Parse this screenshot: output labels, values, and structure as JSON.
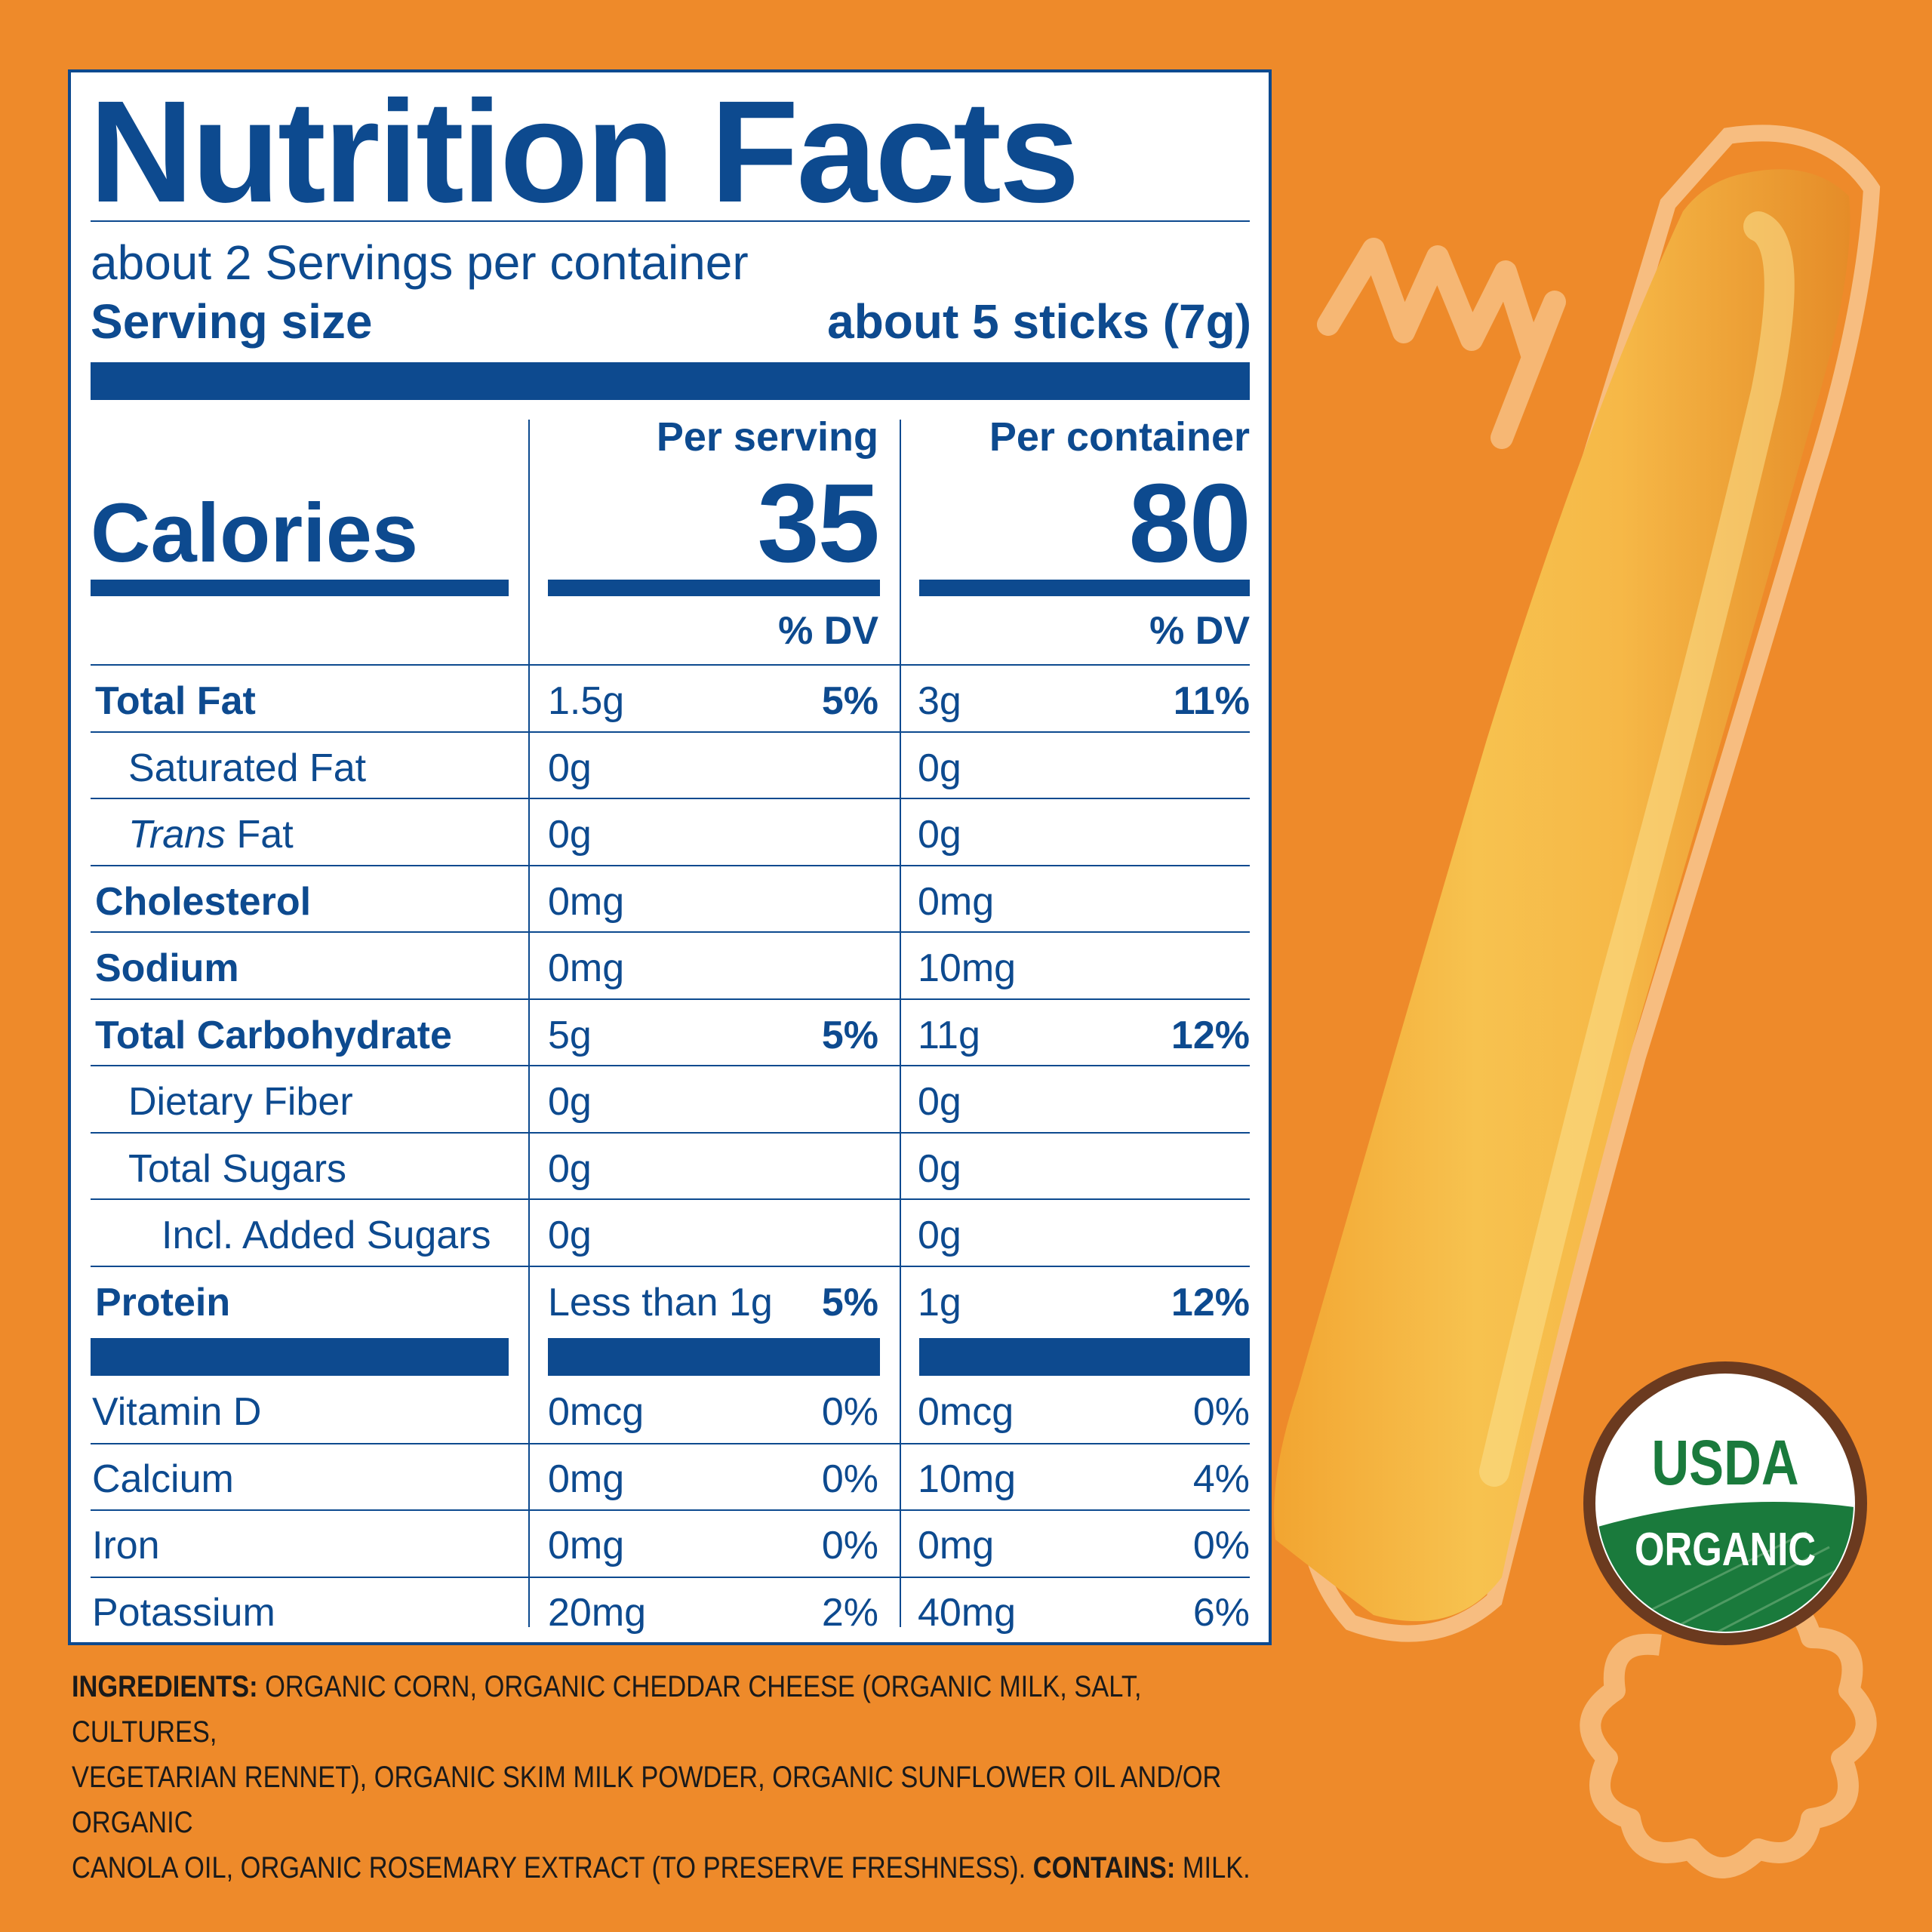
{
  "label": {
    "title": "Nutrition Facts",
    "servings_per_container": "about 2 Servings per container",
    "serving_size_label": "Serving size",
    "serving_size_value": "about 5 sticks (7g)",
    "col_serving": "Per serving",
    "col_container": "Per container",
    "calories_label": "Calories",
    "calories_serving": "35",
    "calories_container": "80",
    "dv_label": "% DV",
    "nutrients": [
      {
        "name": "Total Fat",
        "serving": "1.5g",
        "serving_dv": "5%",
        "container": "3g",
        "container_dv": "11%"
      },
      {
        "name": "Saturated Fat",
        "serving": "0g",
        "serving_dv": "",
        "container": "0g",
        "container_dv": ""
      },
      {
        "name_italic": "Trans",
        "name": " Fat",
        "serving": "0g",
        "serving_dv": "",
        "container": "0g",
        "container_dv": ""
      },
      {
        "name": "Cholesterol",
        "serving": "0mg",
        "serving_dv": "",
        "container": "0mg",
        "container_dv": ""
      },
      {
        "name": "Sodium",
        "serving": "0mg",
        "serving_dv": "",
        "container": "10mg",
        "container_dv": ""
      },
      {
        "name": "Total Carbohydrate",
        "serving": "5g",
        "serving_dv": "5%",
        "container": "11g",
        "container_dv": "12%"
      },
      {
        "name": "Dietary Fiber",
        "serving": "0g",
        "serving_dv": "",
        "container": "0g",
        "container_dv": ""
      },
      {
        "name": "Total Sugars",
        "serving": "0g",
        "serving_dv": "",
        "container": "0g",
        "container_dv": ""
      },
      {
        "name": "Incl. Added Sugars",
        "serving": "0g",
        "serving_dv": "",
        "container": "0g",
        "container_dv": ""
      },
      {
        "name": "Protein",
        "serving": "Less than 1g",
        "serving_dv": "5%",
        "container": "1g",
        "container_dv": "12%"
      }
    ],
    "vitamins": [
      {
        "name": "Vitamin D",
        "serving": "0mcg",
        "serving_dv": "0%",
        "container": "0mcg",
        "container_dv": "0%"
      },
      {
        "name": "Calcium",
        "serving": "0mg",
        "serving_dv": "0%",
        "container": "10mg",
        "container_dv": "4%"
      },
      {
        "name": "Iron",
        "serving": "0mg",
        "serving_dv": "0%",
        "container": "0mg",
        "container_dv": "0%"
      },
      {
        "name": "Potassium",
        "serving": "20mg",
        "serving_dv": "2%",
        "container": "40mg",
        "container_dv": "6%"
      }
    ]
  },
  "ingredients": {
    "label": "INGREDIENTS:",
    "line1": " ORGANIC CORN, ORGANIC CHEDDAR CHEESE (ORGANIC MILK, SALT, CULTURES,",
    "line2": "VEGETARIAN RENNET), ORGANIC SKIM MILK POWDER, ORGANIC SUNFLOWER OIL AND/OR ORGANIC",
    "line3": "CANOLA OIL, ORGANIC ROSEMARY EXTRACT (TO PRESERVE FRESHNESS). ",
    "contains_label": "CONTAINS:",
    "contains_value": " MILK."
  },
  "seal": {
    "top": "USDA",
    "bottom": "ORGANIC"
  },
  "colors": {
    "background": "#ee8a2a",
    "label_blue": "#0d4a8f",
    "seal_green": "#1a7a3c",
    "seal_brown": "#6b3a1f"
  }
}
